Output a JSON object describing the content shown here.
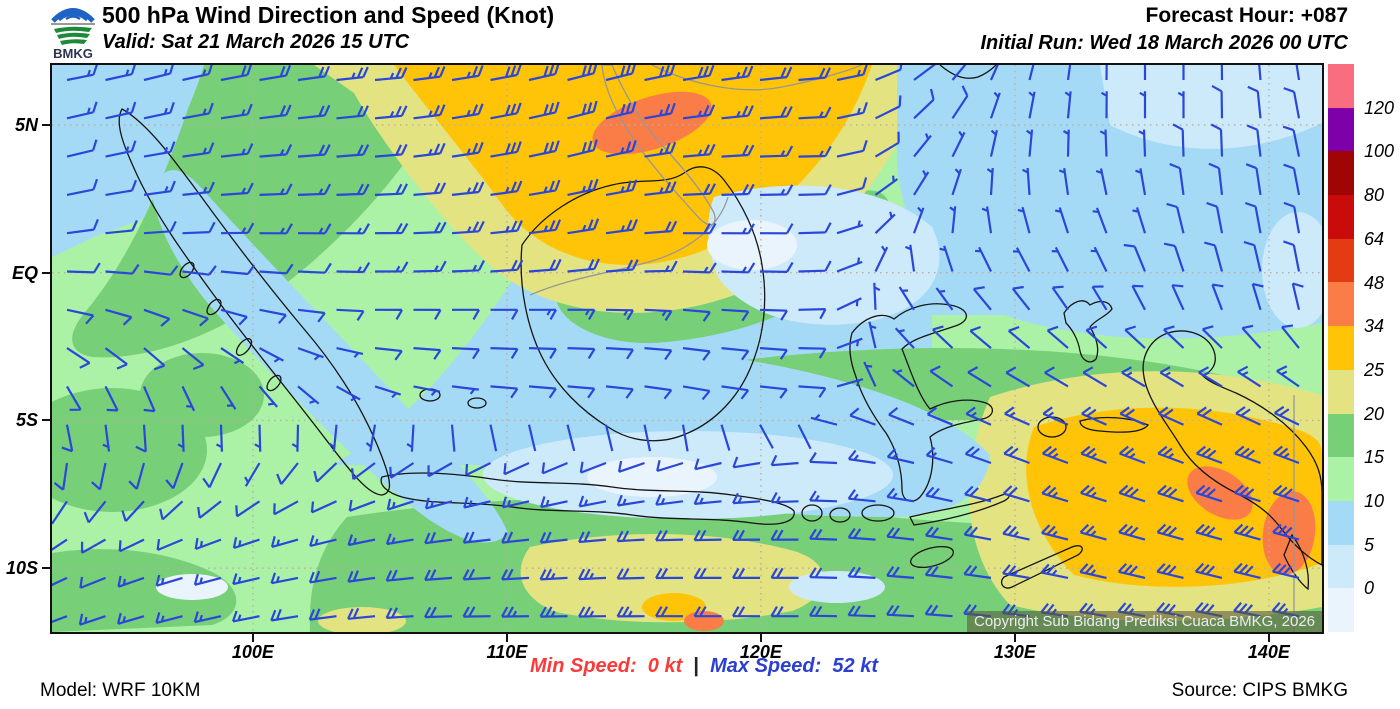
{
  "header": {
    "title": "500 hPa Wind Direction and Speed (Knot)",
    "valid": "Valid: Sat 21 March 2026 15 UTC",
    "forecast_hour": "Forecast Hour: +087",
    "initial_run": "Initial Run: Wed 18 March 2026 00 UTC",
    "logo_text": "BMKG"
  },
  "footer": {
    "model": "Model: WRF 10KM",
    "min_speed_label": "Min Speed:",
    "min_speed_value": "0 kt",
    "separator": "|",
    "max_speed_label": "Max Speed:",
    "max_speed_value": "52 kt",
    "source": "Source: CIPS BMKG"
  },
  "map": {
    "copyright": "Copyright Sub Bidang Prediksi Cuaca BMKG, 2026",
    "x_ticks": [
      "100E",
      "110E",
      "120E",
      "130E",
      "140E"
    ],
    "y_ticks": [
      "5N",
      "EQ",
      "5S",
      "10S"
    ]
  },
  "legend": {
    "tick_values": [
      120,
      100,
      80,
      64,
      48,
      34,
      25,
      20,
      15,
      10,
      5,
      0
    ],
    "colors_top_to_bottom": [
      "#F96D80",
      "#7D00A8",
      "#A00505",
      "#C90B0B",
      "#E43C12",
      "#FA7D47",
      "#FFC408",
      "#E3E382",
      "#77CF78",
      "#ABF2A6",
      "#A5DAF7",
      "#CDEAFB",
      "#EAF4FD"
    ],
    "barb_color": "#2B47D9"
  },
  "chart_data": {
    "type": "heatmap",
    "title": "500 hPa Wind Direction and Speed (Knot)",
    "units": "knot",
    "speed_thresholds": [
      0,
      5,
      10,
      15,
      20,
      25,
      34,
      48,
      64,
      80,
      100,
      120
    ],
    "min_speed_kt": 0,
    "max_speed_kt": 52,
    "lon_range": [
      92,
      142
    ],
    "lat_range": [
      -12,
      7
    ],
    "wind_grid_dir_speed": {
      "note": "wind barbs read from map; dir = meteorological from-direction (deg), speed kt; 8 rows north(7N) to south(12S) x 13 cols west(92E) to east(142E)",
      "rows": [
        [
          [
            80,
            15
          ],
          [
            75,
            15
          ],
          [
            80,
            20
          ],
          [
            85,
            25
          ],
          [
            80,
            28
          ],
          [
            75,
            30
          ],
          [
            80,
            28
          ],
          [
            85,
            20
          ],
          [
            60,
            10
          ],
          [
            20,
            8
          ],
          [
            0,
            7
          ],
          [
            0,
            7
          ],
          [
            350,
            8
          ]
        ],
        [
          [
            75,
            12
          ],
          [
            80,
            15
          ],
          [
            85,
            18
          ],
          [
            85,
            22
          ],
          [
            80,
            28
          ],
          [
            75,
            28
          ],
          [
            85,
            25
          ],
          [
            90,
            15
          ],
          [
            45,
            8
          ],
          [
            10,
            7
          ],
          [
            0,
            7
          ],
          [
            0,
            8
          ],
          [
            345,
            8
          ]
        ],
        [
          [
            80,
            10
          ],
          [
            85,
            12
          ],
          [
            90,
            15
          ],
          [
            90,
            18
          ],
          [
            85,
            25
          ],
          [
            80,
            25
          ],
          [
            90,
            18
          ],
          [
            90,
            10
          ],
          [
            30,
            6
          ],
          [
            350,
            6
          ],
          [
            340,
            7
          ],
          [
            350,
            8
          ],
          [
            350,
            9
          ]
        ],
        [
          [
            100,
            10
          ],
          [
            110,
            10
          ],
          [
            100,
            8
          ],
          [
            90,
            10
          ],
          [
            90,
            12
          ],
          [
            90,
            15
          ],
          [
            95,
            12
          ],
          [
            90,
            10
          ],
          [
            330,
            6
          ],
          [
            320,
            8
          ],
          [
            330,
            8
          ],
          [
            340,
            8
          ],
          [
            350,
            10
          ]
        ],
        [
          [
            150,
            8
          ],
          [
            160,
            8
          ],
          [
            140,
            6
          ],
          [
            110,
            5
          ],
          [
            95,
            8
          ],
          [
            95,
            10
          ],
          [
            100,
            10
          ],
          [
            95,
            12
          ],
          [
            310,
            7
          ],
          [
            300,
            10
          ],
          [
            300,
            12
          ],
          [
            300,
            15
          ],
          [
            305,
            15
          ]
        ],
        [
          [
            190,
            8
          ],
          [
            200,
            8
          ],
          [
            215,
            8
          ],
          [
            235,
            9
          ],
          [
            245,
            10
          ],
          [
            250,
            12
          ],
          [
            255,
            12
          ],
          [
            265,
            13
          ],
          [
            280,
            15
          ],
          [
            290,
            20
          ],
          [
            290,
            26
          ],
          [
            290,
            30
          ],
          [
            290,
            28
          ]
        ],
        [
          [
            240,
            10
          ],
          [
            250,
            12
          ],
          [
            255,
            15
          ],
          [
            260,
            18
          ],
          [
            265,
            20
          ],
          [
            265,
            22
          ],
          [
            270,
            22
          ],
          [
            270,
            20
          ],
          [
            275,
            20
          ],
          [
            280,
            22
          ],
          [
            285,
            28
          ],
          [
            285,
            32
          ],
          [
            285,
            30
          ]
        ],
        [
          [
            250,
            12
          ],
          [
            255,
            15
          ],
          [
            260,
            18
          ],
          [
            265,
            20
          ],
          [
            270,
            22
          ],
          [
            270,
            25
          ],
          [
            270,
            22
          ],
          [
            270,
            20
          ],
          [
            272,
            20
          ],
          [
            275,
            22
          ],
          [
            278,
            25
          ],
          [
            280,
            28
          ],
          [
            280,
            26
          ]
        ]
      ]
    }
  }
}
